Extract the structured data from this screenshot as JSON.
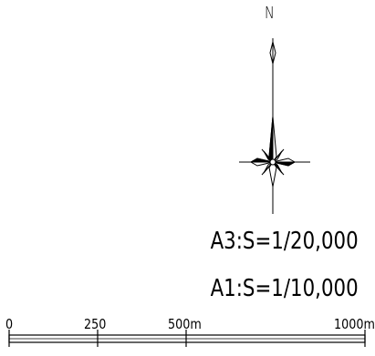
{
  "north_arrow": {
    "label": "N"
  },
  "scale_notes": {
    "a3": "A3:S=1/20,000",
    "a1": "A1:S=1/10,000"
  },
  "scale_bar": {
    "ticks": [
      "0",
      "250",
      "500m",
      "1000m"
    ],
    "distances": [
      0,
      250,
      500,
      1000
    ]
  }
}
